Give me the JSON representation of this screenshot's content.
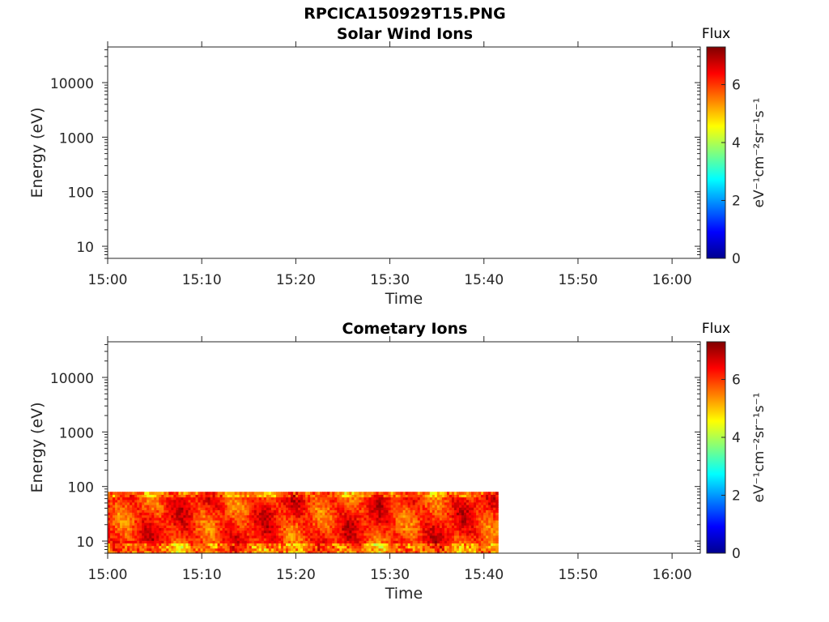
{
  "figure": {
    "title": "RPCICA150929T15.PNG"
  },
  "chart_data": [
    {
      "type": "heatmap",
      "title": "Solar Wind Ions",
      "xlabel": "Time",
      "ylabel": "Energy (eV)",
      "x_ticks": [
        "15:00",
        "15:10",
        "15:20",
        "15:30",
        "15:40",
        "15:50",
        "16:00"
      ],
      "y_ticks": [
        "10",
        "100",
        "1000",
        "10000"
      ],
      "y_scale": "log",
      "ylim": [
        6,
        45000
      ],
      "xlim_minutes": [
        0,
        63
      ],
      "colorbar": {
        "label": "Flux",
        "unit": "eV⁻¹cm⁻²sr⁻¹s⁻¹",
        "ticks": [
          "0",
          "2",
          "4",
          "6"
        ],
        "range": [
          0,
          7.3
        ],
        "colormap": "jet"
      },
      "data_present": false
    },
    {
      "type": "heatmap",
      "title": "Cometary Ions",
      "xlabel": "Time",
      "ylabel": "Energy (eV)",
      "x_ticks": [
        "15:00",
        "15:10",
        "15:20",
        "15:30",
        "15:40",
        "15:50",
        "16:00"
      ],
      "y_ticks": [
        "10",
        "100",
        "1000",
        "10000"
      ],
      "y_scale": "log",
      "ylim": [
        6,
        45000
      ],
      "xlim_minutes": [
        0,
        63
      ],
      "colorbar": {
        "label": "Flux",
        "unit": "eV⁻¹cm⁻²sr⁻¹s⁻¹",
        "ticks": [
          "0",
          "2",
          "4",
          "6"
        ],
        "range": [
          0,
          7.3
        ],
        "colormap": "jet"
      },
      "data_present": true,
      "data_time_range_minutes": [
        0,
        41.5
      ],
      "data_energy_range_ev": [
        6,
        80
      ],
      "flux_range": [
        3,
        7.3
      ]
    }
  ]
}
